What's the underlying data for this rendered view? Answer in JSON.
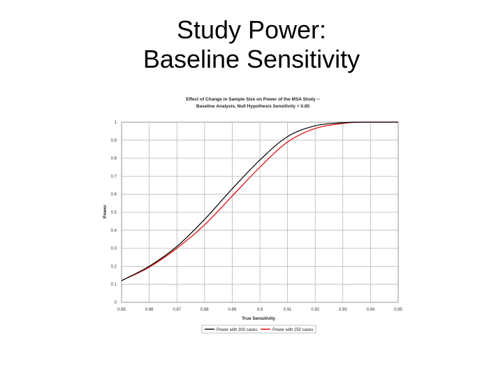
{
  "slide": {
    "title_line1": "Study Power:",
    "title_line2": "Baseline Sensitivity"
  },
  "chart_data": {
    "type": "line",
    "title_line1": "Effect of Change in Sample Size on Power of the MSA Study --",
    "title_line2": "Baseline Analysis, Null Hypothesis Sensitivity = 0.85",
    "xlabel": "True Sensitivity",
    "ylabel": "Power",
    "xlim": [
      0.85,
      0.95
    ],
    "ylim": [
      0,
      1
    ],
    "x_ticks": [
      "0.85",
      "0.86",
      "0.87",
      "0.88",
      "0.89",
      "0.9",
      "0.91",
      "0.92",
      "0.93",
      "0.94",
      "0.95"
    ],
    "y_ticks": [
      "0",
      "0.1",
      "0.2",
      "0.3",
      "0.4",
      "0.5",
      "0.6",
      "0.7",
      "0.8",
      "0.9",
      "1"
    ],
    "grid": true,
    "legend_position": "bottom",
    "series": [
      {
        "name": "Power with 300 cases",
        "color": "#000000",
        "x": [
          0.85,
          0.86,
          0.87,
          0.88,
          0.89,
          0.9,
          0.91,
          0.92,
          0.93,
          0.935,
          0.94,
          0.95
        ],
        "y": [
          0.12,
          0.2,
          0.31,
          0.46,
          0.63,
          0.79,
          0.92,
          0.98,
          0.997,
          1.0,
          1.0,
          1.0
        ]
      },
      {
        "name": "Power with 250 cases",
        "color": "#e00000",
        "x": [
          0.85,
          0.86,
          0.87,
          0.88,
          0.89,
          0.9,
          0.91,
          0.92,
          0.93,
          0.935,
          0.94,
          0.95
        ],
        "y": [
          0.12,
          0.195,
          0.3,
          0.43,
          0.59,
          0.75,
          0.89,
          0.965,
          0.993,
          0.999,
          1.0,
          1.0
        ]
      }
    ]
  }
}
